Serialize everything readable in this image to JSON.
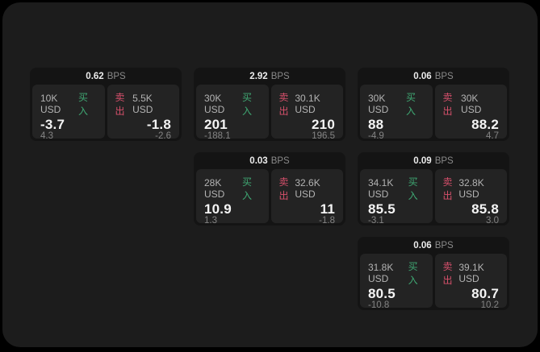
{
  "colors": {
    "buy_green": "#3fa873",
    "sell_red": "#d6506b",
    "window_bg": "#1c1c1c",
    "card_bg": "#141414",
    "tile_bg": "#232323"
  },
  "labels": {
    "buy": "买入",
    "sell": "卖出",
    "bps_unit": "BPS"
  },
  "cards": [
    {
      "bps": "0.62",
      "buy": {
        "amount": "10K USD",
        "value": "-3.7",
        "delta": "4.3"
      },
      "sell": {
        "amount": "5.5K USD",
        "value": "-1.8",
        "delta": "-2.6"
      }
    },
    {
      "bps": "2.92",
      "buy": {
        "amount": "30K USD",
        "value": "201",
        "delta": "-188.1"
      },
      "sell": {
        "amount": "30.1K USD",
        "value": "210",
        "delta": "196.5"
      }
    },
    {
      "bps": "0.06",
      "buy": {
        "amount": "30K USD",
        "value": "88",
        "delta": "-4.9"
      },
      "sell": {
        "amount": "30K USD",
        "value": "88.2",
        "delta": "4.7"
      }
    },
    {
      "bps": "0.03",
      "buy": {
        "amount": "28K USD",
        "value": "10.9",
        "delta": "1.3"
      },
      "sell": {
        "amount": "32.6K USD",
        "value": "11",
        "delta": "-1.8"
      }
    },
    {
      "bps": "0.09",
      "buy": {
        "amount": "34.1K USD",
        "value": "85.5",
        "delta": "-3.1"
      },
      "sell": {
        "amount": "32.8K USD",
        "value": "85.8",
        "delta": "3.0"
      }
    },
    {
      "bps": "0.06",
      "buy": {
        "amount": "31.8K USD",
        "value": "80.5",
        "delta": "-10.8"
      },
      "sell": {
        "amount": "39.1K USD",
        "value": "80.7",
        "delta": "10.2"
      }
    }
  ]
}
